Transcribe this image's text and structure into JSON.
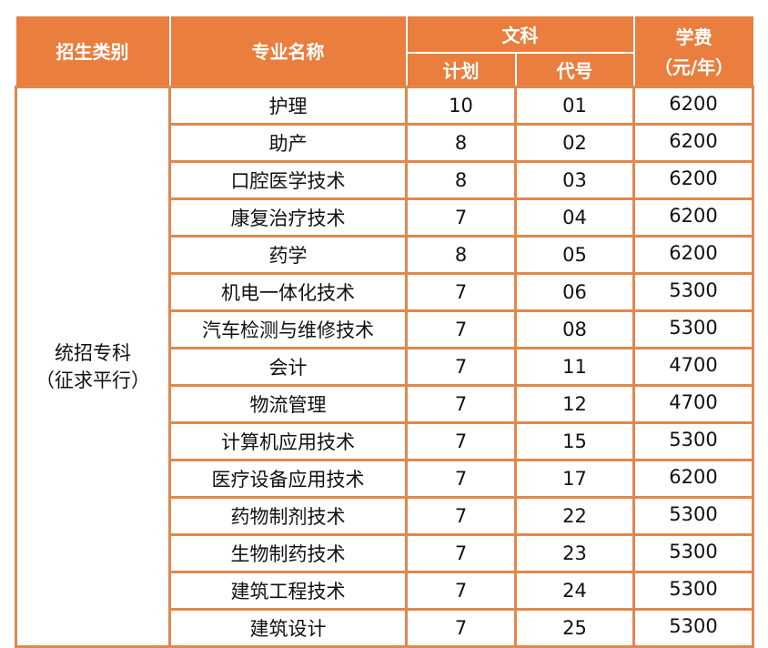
{
  "table": {
    "colors": {
      "header_bg": "#E97E3E",
      "header_text": "#FFFFFF",
      "border": "#E0884E",
      "body_text": "#111111"
    },
    "headers": {
      "category": "招生类别",
      "major": "专业名称",
      "liberal_arts": "文科",
      "plan": "计划",
      "code": "代号",
      "tuition_line1": "学费",
      "tuition_line2": "（元/年）"
    },
    "category": {
      "line1": "统招专科",
      "line2": "（征求平行）"
    },
    "rows": [
      {
        "major": "护理",
        "plan": "10",
        "code": "01",
        "tuition": "6200"
      },
      {
        "major": "助产",
        "plan": "8",
        "code": "02",
        "tuition": "6200"
      },
      {
        "major": "口腔医学技术",
        "plan": "8",
        "code": "03",
        "tuition": "6200"
      },
      {
        "major": "康复治疗技术",
        "plan": "7",
        "code": "04",
        "tuition": "6200"
      },
      {
        "major": "药学",
        "plan": "8",
        "code": "05",
        "tuition": "6200"
      },
      {
        "major": "机电一体化技术",
        "plan": "7",
        "code": "06",
        "tuition": "5300"
      },
      {
        "major": "汽车检测与维修技术",
        "plan": "7",
        "code": "08",
        "tuition": "5300"
      },
      {
        "major": "会计",
        "plan": "7",
        "code": "11",
        "tuition": "4700"
      },
      {
        "major": "物流管理",
        "plan": "7",
        "code": "12",
        "tuition": "4700"
      },
      {
        "major": "计算机应用技术",
        "plan": "7",
        "code": "15",
        "tuition": "5300"
      },
      {
        "major": "医疗设备应用技术",
        "plan": "7",
        "code": "17",
        "tuition": "6200"
      },
      {
        "major": "药物制剂技术",
        "plan": "7",
        "code": "22",
        "tuition": "5300"
      },
      {
        "major": "生物制药技术",
        "plan": "7",
        "code": "23",
        "tuition": "5300"
      },
      {
        "major": "建筑工程技术",
        "plan": "7",
        "code": "24",
        "tuition": "5300"
      },
      {
        "major": "建筑设计",
        "plan": "7",
        "code": "25",
        "tuition": "5300"
      }
    ]
  }
}
